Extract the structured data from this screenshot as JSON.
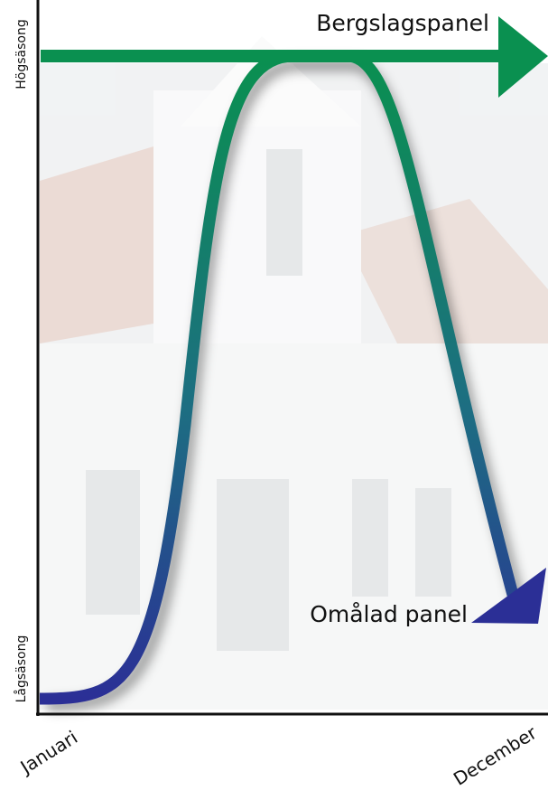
{
  "axes": {
    "y_top": "Högsäsong",
    "y_bottom": "Lågsäsong",
    "x_start": "Januari",
    "x_end": "December"
  },
  "curves": [
    {
      "label": "Bergslagspanel"
    },
    {
      "label": "Omålad panel"
    }
  ]
}
